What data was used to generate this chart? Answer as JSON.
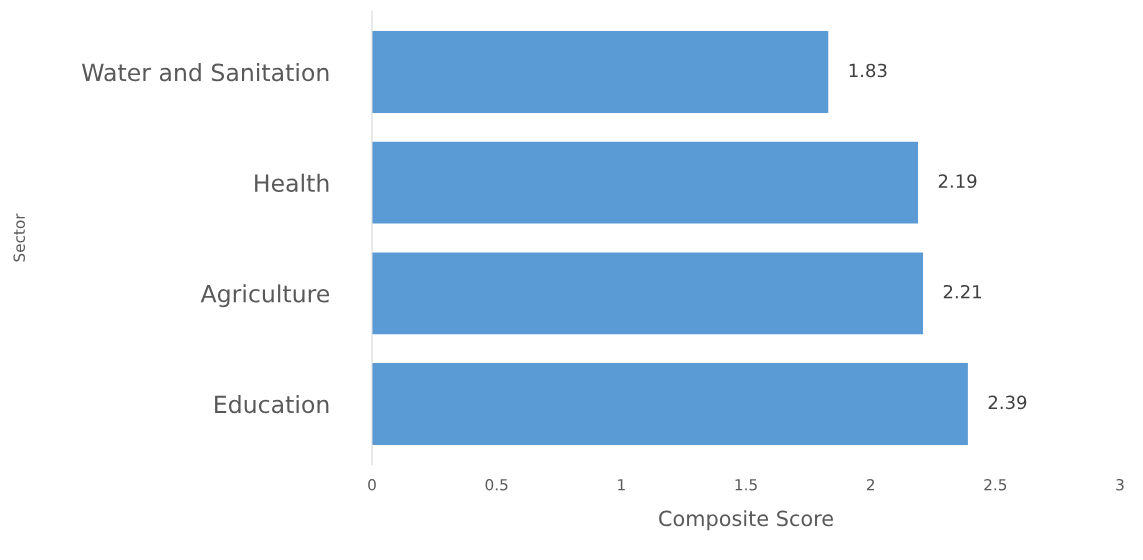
{
  "chart_data": {
    "type": "bar",
    "orientation": "horizontal",
    "xlabel": "Composite Score",
    "ylabel": "Sector",
    "categories": [
      "Water and Sanitation",
      "Health",
      "Agriculture",
      "Education"
    ],
    "values": [
      1.83,
      2.19,
      2.21,
      2.39
    ],
    "color": "#5b9bd5",
    "xlim": [
      0,
      3
    ],
    "xticks": [
      0,
      0.5,
      1,
      1.5,
      2,
      2.5,
      3
    ],
    "grid": false,
    "data_labels": true
  }
}
